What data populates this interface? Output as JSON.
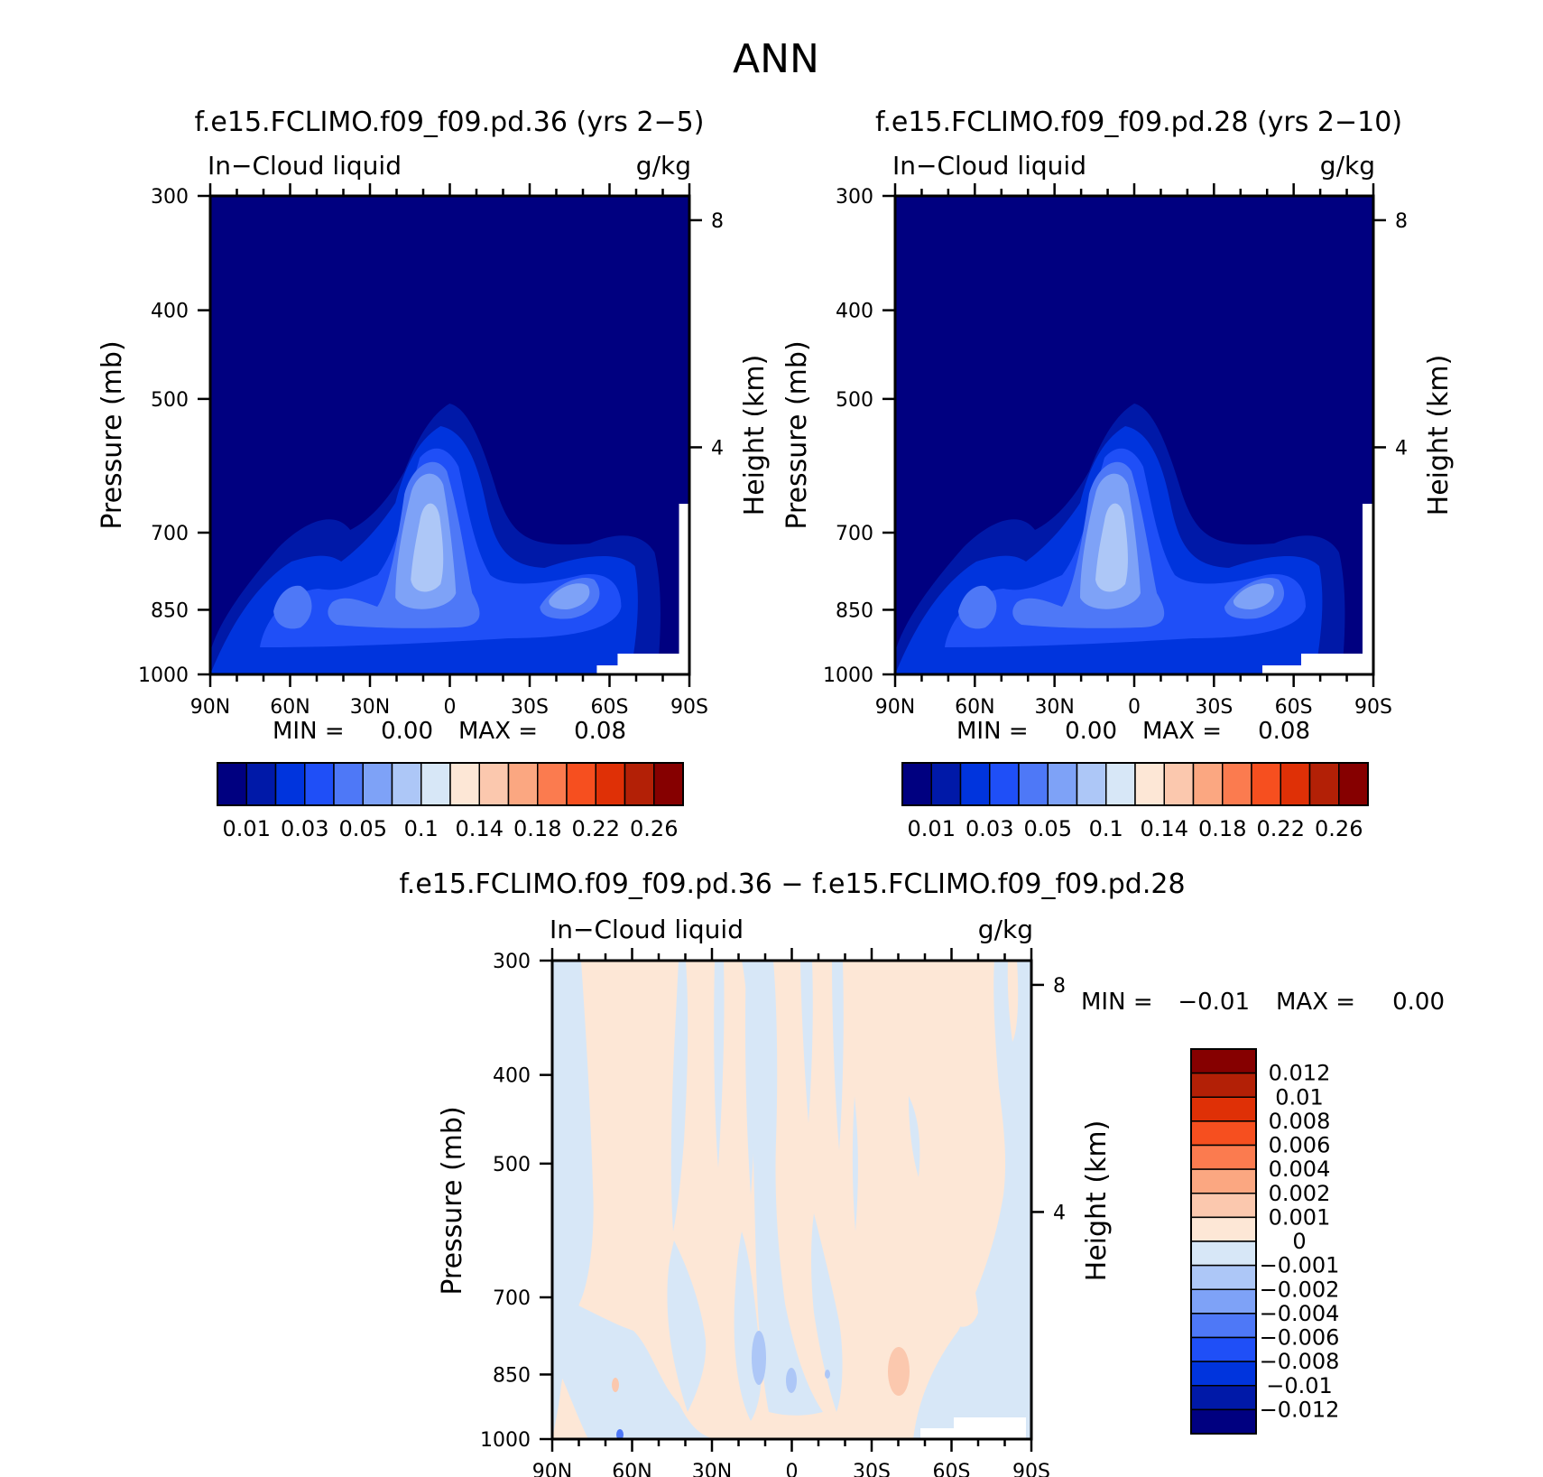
{
  "page": {
    "title": "ANN"
  },
  "colors": {
    "main_scale": [
      "#000080",
      "#0019a8",
      "#0034dd",
      "#1f4ff7",
      "#4e78f7",
      "#7ea2f7",
      "#adc7f7",
      "#d7e7f7",
      "#fde7d6",
      "#fbc8ae",
      "#fba781",
      "#fb7b4f",
      "#f64f1f",
      "#df3006",
      "#b32006",
      "#860000"
    ],
    "diff_scale": [
      "#000080",
      "#0019a8",
      "#0034dd",
      "#1f4ff7",
      "#4e78f7",
      "#7ea2f7",
      "#adc7f7",
      "#d7e7f7",
      "#fde7d6",
      "#fbc8ae",
      "#fba781",
      "#fb7b4f",
      "#f64f1f",
      "#df3006",
      "#b32006",
      "#860000"
    ],
    "missing": "#ffffff"
  },
  "chart_data": [
    {
      "type": "contour",
      "title": "f.e15.FCLIMO.f09_f09.pd.36 (yrs 2−5)",
      "subtitle_left": "In−Cloud liquid",
      "subtitle_right": "g/kg",
      "xlabel": "",
      "ylabel": "Pressure (mb)",
      "y2label": "Height (km)",
      "x_ticks": [
        "90N",
        "60N",
        "30N",
        "0",
        "30S",
        "60S",
        "90S"
      ],
      "x_tick_values": [
        90,
        60,
        30,
        0,
        -30,
        -60,
        -90
      ],
      "y_ticks": [
        "300",
        "400",
        "500",
        "700",
        "850",
        "1000"
      ],
      "y_tick_values": [
        300,
        400,
        500,
        700,
        850,
        1000
      ],
      "y2_ticks": [
        "8",
        "4"
      ],
      "y2_tick_values": [
        8,
        4
      ],
      "xlim": [
        90,
        -90
      ],
      "ylim": [
        1000,
        300
      ],
      "y_scale": "log",
      "stats": {
        "min_label": "MIN =",
        "min": "0.00",
        "max_label": "MAX =",
        "max": "0.08"
      },
      "colorbar": {
        "orientation": "horizontal",
        "labels": [
          "0.01",
          "0.03",
          "0.05",
          "0.1",
          "0.14",
          "0.18",
          "0.22",
          "0.26"
        ]
      },
      "field_features": [
        {
          "lat": 0,
          "p_top": 505,
          "kind": "tropical maximum"
        },
        {
          "lat": -55,
          "p_center": 830,
          "kind": "southern mid-latitude maximum"
        },
        {
          "lat": 55,
          "p_center": 830,
          "kind": "northern mid-latitude maximum"
        }
      ]
    },
    {
      "type": "contour",
      "title": "f.e15.FCLIMO.f09_f09.pd.28 (yrs 2−10)",
      "subtitle_left": "In−Cloud liquid",
      "subtitle_right": "g/kg",
      "xlabel": "",
      "ylabel": "Pressure (mb)",
      "y2label": "Height (km)",
      "x_ticks": [
        "90N",
        "60N",
        "30N",
        "0",
        "30S",
        "60S",
        "90S"
      ],
      "x_tick_values": [
        90,
        60,
        30,
        0,
        -30,
        -60,
        -90
      ],
      "y_ticks": [
        "300",
        "400",
        "500",
        "700",
        "850",
        "1000"
      ],
      "y_tick_values": [
        300,
        400,
        500,
        700,
        850,
        1000
      ],
      "y2_ticks": [
        "8",
        "4"
      ],
      "y2_tick_values": [
        8,
        4
      ],
      "xlim": [
        90,
        -90
      ],
      "ylim": [
        1000,
        300
      ],
      "y_scale": "log",
      "stats": {
        "min_label": "MIN =",
        "min": "0.00",
        "max_label": "MAX =",
        "max": "0.08"
      },
      "colorbar": {
        "orientation": "horizontal",
        "labels": [
          "0.01",
          "0.03",
          "0.05",
          "0.1",
          "0.14",
          "0.18",
          "0.22",
          "0.26"
        ]
      }
    },
    {
      "type": "contour",
      "title": "f.e15.FCLIMO.f09_f09.pd.36 − f.e15.FCLIMO.f09_f09.pd.28",
      "subtitle_left": "In−Cloud liquid",
      "subtitle_right": "g/kg",
      "xlabel": "",
      "ylabel": "Pressure (mb)",
      "y2label": "Height (km)",
      "x_ticks": [
        "90N",
        "60N",
        "30N",
        "0",
        "30S",
        "60S",
        "90S"
      ],
      "x_tick_values": [
        90,
        60,
        30,
        0,
        -30,
        -60,
        -90
      ],
      "y_ticks": [
        "300",
        "400",
        "500",
        "700",
        "850",
        "1000"
      ],
      "y_tick_values": [
        300,
        400,
        500,
        700,
        850,
        1000
      ],
      "y2_ticks": [
        "8",
        "4"
      ],
      "y2_tick_values": [
        8,
        4
      ],
      "xlim": [
        90,
        -90
      ],
      "ylim": [
        1000,
        300
      ],
      "y_scale": "log",
      "stats": {
        "min_label": "MIN =",
        "min": "−0.01",
        "max_label": "MAX =",
        "max": "0.00"
      },
      "colorbar": {
        "orientation": "vertical",
        "labels": [
          "0.012",
          "0.01",
          "0.008",
          "0.006",
          "0.004",
          "0.002",
          "0.001",
          "0",
          "−0.001",
          "−0.002",
          "−0.004",
          "−0.006",
          "−0.008",
          "−0.01",
          "−0.012"
        ]
      }
    }
  ]
}
